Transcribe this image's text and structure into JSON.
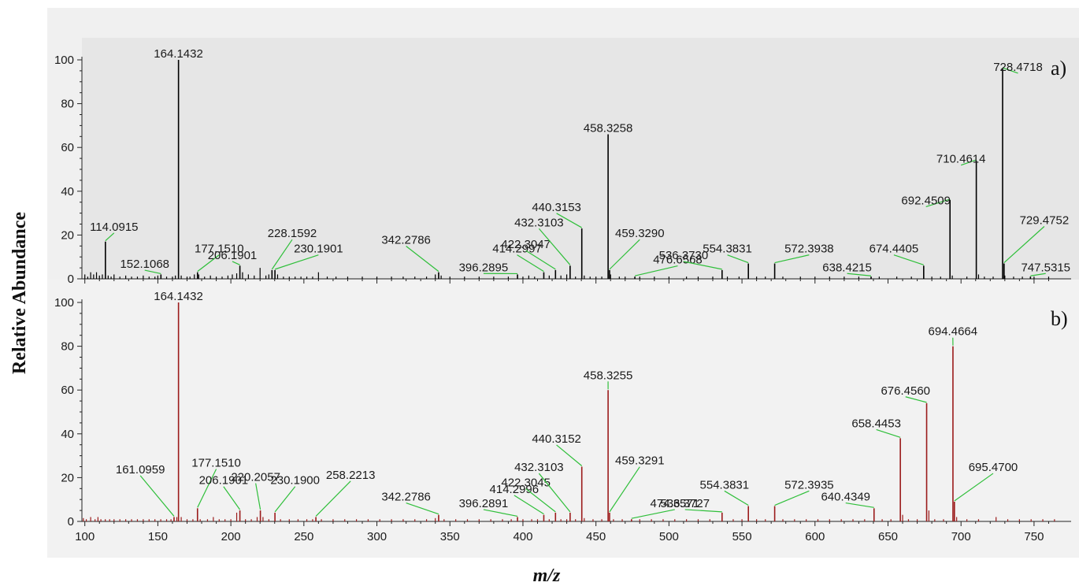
{
  "colors": {
    "panel_a_bg": "#e6e6e6",
    "panel_b_bg": "#f2f2f2",
    "spectrum_a": "#000000",
    "spectrum_b": "#9b1b1b",
    "leader_line": "#2fbf3a"
  },
  "chart_data": [
    {
      "type": "bar",
      "subtype": "mass-spectrum",
      "panel_label": "a)",
      "xlabel": "m/z",
      "ylabel": "Relative Abundance",
      "xlim": [
        98,
        770
      ],
      "ylim": [
        0,
        100
      ],
      "y_ticks": [
        0,
        20,
        40,
        60,
        80,
        100
      ],
      "peaks": [
        {
          "mz": 114.0915,
          "intensity": 17,
          "label": "114.0915",
          "label_mz": 120,
          "label_y": 22
        },
        {
          "mz": 152.1068,
          "intensity": 2,
          "label": "152.1068",
          "label_mz": 141,
          "label_y": 5
        },
        {
          "mz": 164.1432,
          "intensity": 100,
          "label": "164.1432",
          "label_mz": 164.1,
          "label_y": 101
        },
        {
          "mz": 177.151,
          "intensity": 3,
          "label": "177.1510",
          "label_mz": 192,
          "label_y": 12
        },
        {
          "mz": 206.1901,
          "intensity": 6,
          "label": "206.1901",
          "label_mz": 201,
          "label_y": 9
        },
        {
          "mz": 228.1592,
          "intensity": 4,
          "label": "228.1592",
          "label_mz": 242,
          "label_y": 19
        },
        {
          "mz": 230.1901,
          "intensity": 4,
          "label": "230.1901",
          "label_mz": 260,
          "label_y": 12
        },
        {
          "mz": 342.2786,
          "intensity": 3,
          "label": "342.2786",
          "label_mz": 320,
          "label_y": 16
        },
        {
          "mz": 396.2895,
          "intensity": 2,
          "label": "396.2895",
          "label_mz": 373,
          "label_y": 3.5
        },
        {
          "mz": 414.2997,
          "intensity": 3,
          "label": "414.2997",
          "label_mz": 396,
          "label_y": 12
        },
        {
          "mz": 422.3047,
          "intensity": 4,
          "label": "422.3047",
          "label_mz": 402,
          "label_y": 14
        },
        {
          "mz": 432.3103,
          "intensity": 6,
          "label": "432.3103",
          "label_mz": 411,
          "label_y": 24
        },
        {
          "mz": 440.3153,
          "intensity": 23,
          "label": "440.3153",
          "label_mz": 423,
          "label_y": 31
        },
        {
          "mz": 458.3258,
          "intensity": 66,
          "label": "458.3258",
          "label_mz": 458.3,
          "label_y": 67
        },
        {
          "mz": 459.329,
          "intensity": 4,
          "label": "459.3290",
          "label_mz": 480,
          "label_y": 19
        },
        {
          "mz": 476.6568,
          "intensity": 1,
          "label": "476.6568",
          "label_mz": 506,
          "label_y": 7
        },
        {
          "mz": 536.373,
          "intensity": 4,
          "label": "536.3730",
          "label_mz": 510,
          "label_y": 9
        },
        {
          "mz": 554.3831,
          "intensity": 7,
          "label": "554.3831",
          "label_mz": 540,
          "label_y": 12
        },
        {
          "mz": 572.3938,
          "intensity": 7,
          "label": "572.3938",
          "label_mz": 596,
          "label_y": 12
        },
        {
          "mz": 638.4215,
          "intensity": 1,
          "label": "638.4215",
          "label_mz": 622,
          "label_y": 3.5
        },
        {
          "mz": 674.4405,
          "intensity": 6,
          "label": "674.4405",
          "label_mz": 654,
          "label_y": 12
        },
        {
          "mz": 692.4509,
          "intensity": 36,
          "label": "692.4509",
          "label_mz": 676,
          "label_y": 34
        },
        {
          "mz": 710.4614,
          "intensity": 54,
          "label": "710.4614",
          "label_mz": 700,
          "label_y": 53
        },
        {
          "mz": 728.4718,
          "intensity": 96,
          "label": "728.4718",
          "label_mz": 739,
          "label_y": 95
        },
        {
          "mz": 729.4752,
          "intensity": 7,
          "label": "729.4752",
          "label_mz": 757,
          "label_y": 25
        },
        {
          "mz": 747.5315,
          "intensity": 1,
          "label": "747.5315",
          "label_mz": 758,
          "label_y": 3.5
        }
      ],
      "minor_peaks": [
        [
          100,
          2
        ],
        [
          102,
          1
        ],
        [
          104,
          3
        ],
        [
          106,
          2
        ],
        [
          108,
          3
        ],
        [
          110,
          1.5
        ],
        [
          112,
          2
        ],
        [
          116,
          1.5
        ],
        [
          118,
          1
        ],
        [
          120,
          2
        ],
        [
          124,
          1
        ],
        [
          128,
          1.5
        ],
        [
          132,
          1
        ],
        [
          136,
          1
        ],
        [
          140,
          1.5
        ],
        [
          144,
          1
        ],
        [
          148,
          1
        ],
        [
          150,
          1.5
        ],
        [
          156,
          1
        ],
        [
          160,
          1
        ],
        [
          162,
          1.5
        ],
        [
          166,
          1.5
        ],
        [
          170,
          1
        ],
        [
          172,
          1
        ],
        [
          175,
          2
        ],
        [
          178,
          2
        ],
        [
          182,
          1
        ],
        [
          186,
          1.5
        ],
        [
          190,
          1
        ],
        [
          194,
          1
        ],
        [
          198,
          1.5
        ],
        [
          201,
          2
        ],
        [
          204,
          2.5
        ],
        [
          208,
          3
        ],
        [
          212,
          2
        ],
        [
          216,
          1.5
        ],
        [
          220,
          5
        ],
        [
          224,
          1.5
        ],
        [
          226,
          2
        ],
        [
          232,
          2
        ],
        [
          236,
          1
        ],
        [
          240,
          1
        ],
        [
          244,
          1
        ],
        [
          248,
          1
        ],
        [
          252,
          1
        ],
        [
          256,
          1
        ],
        [
          260,
          3
        ],
        [
          266,
          1
        ],
        [
          272,
          1
        ],
        [
          280,
          1
        ],
        [
          290,
          1
        ],
        [
          300,
          1
        ],
        [
          310,
          1
        ],
        [
          318,
          1
        ],
        [
          326,
          1
        ],
        [
          334,
          1
        ],
        [
          340,
          2
        ],
        [
          344,
          1.5
        ],
        [
          350,
          1
        ],
        [
          360,
          1
        ],
        [
          370,
          1
        ],
        [
          380,
          1
        ],
        [
          390,
          1
        ],
        [
          400,
          1
        ],
        [
          404,
          1.5
        ],
        [
          408,
          1
        ],
        [
          418,
          1.5
        ],
        [
          426,
          1.5
        ],
        [
          430,
          2
        ],
        [
          436,
          1
        ],
        [
          442,
          1.5
        ],
        [
          446,
          1
        ],
        [
          450,
          1
        ],
        [
          454,
          1
        ],
        [
          460,
          2
        ],
        [
          466,
          1
        ],
        [
          470,
          1
        ],
        [
          480,
          1
        ],
        [
          490,
          1
        ],
        [
          500,
          1
        ],
        [
          512,
          1
        ],
        [
          520,
          1
        ],
        [
          530,
          1
        ],
        [
          540,
          1
        ],
        [
          548,
          1
        ],
        [
          560,
          1
        ],
        [
          566,
          1
        ],
        [
          578,
          1
        ],
        [
          590,
          1
        ],
        [
          600,
          1
        ],
        [
          610,
          1
        ],
        [
          620,
          1
        ],
        [
          630,
          1
        ],
        [
          644,
          1
        ],
        [
          656,
          1
        ],
        [
          666,
          1
        ],
        [
          680,
          1
        ],
        [
          686,
          1
        ],
        [
          694,
          1.5
        ],
        [
          704,
          1
        ],
        [
          712,
          2
        ],
        [
          716,
          1
        ],
        [
          722,
          1
        ],
        [
          730,
          1.5
        ],
        [
          736,
          1
        ],
        [
          742,
          1
        ],
        [
          750,
          1
        ],
        [
          760,
          1
        ]
      ]
    },
    {
      "type": "bar",
      "subtype": "mass-spectrum",
      "panel_label": "b)",
      "xlabel": "m/z",
      "ylabel": "Relative Abundance",
      "xlim": [
        98,
        770
      ],
      "ylim": [
        0,
        100
      ],
      "y_ticks": [
        0,
        20,
        40,
        60,
        80,
        100
      ],
      "x_ticks": [
        100,
        150,
        200,
        250,
        300,
        350,
        400,
        450,
        500,
        550,
        600,
        650,
        700,
        750
      ],
      "peaks": [
        {
          "mz": 161.0959,
          "intensity": 2,
          "label": "161.0959",
          "label_mz": 138,
          "label_y": 22
        },
        {
          "mz": 164.1432,
          "intensity": 100,
          "label": "164.1432",
          "label_mz": 164.1,
          "label_y": 101
        },
        {
          "mz": 177.151,
          "intensity": 6,
          "label": "177.1510",
          "label_mz": 190,
          "label_y": 25
        },
        {
          "mz": 206.1901,
          "intensity": 5,
          "label": "206.1901",
          "label_mz": 195,
          "label_y": 17
        },
        {
          "mz": 220.2057,
          "intensity": 5,
          "label": "220.2057",
          "label_mz": 217,
          "label_y": 18.5
        },
        {
          "mz": 230.19,
          "intensity": 4,
          "label": "230.1900",
          "label_mz": 244,
          "label_y": 17
        },
        {
          "mz": 258.2213,
          "intensity": 2,
          "label": "258.2213",
          "label_mz": 282,
          "label_y": 19.5
        },
        {
          "mz": 342.2786,
          "intensity": 3,
          "label": "342.2786",
          "label_mz": 320,
          "label_y": 9.5
        },
        {
          "mz": 396.2891,
          "intensity": 2,
          "label": "396.2891",
          "label_mz": 373,
          "label_y": 6.5
        },
        {
          "mz": 414.2996,
          "intensity": 3,
          "label": "414.2996",
          "label_mz": 394,
          "label_y": 13
        },
        {
          "mz": 422.3045,
          "intensity": 4,
          "label": "422.3045",
          "label_mz": 402,
          "label_y": 16
        },
        {
          "mz": 432.3103,
          "intensity": 4,
          "label": "432.3103",
          "label_mz": 411,
          "label_y": 23
        },
        {
          "mz": 440.3152,
          "intensity": 25,
          "label": "440.3152",
          "label_mz": 423,
          "label_y": 36
        },
        {
          "mz": 458.3255,
          "intensity": 60,
          "label": "458.3255",
          "label_mz": 458.3,
          "label_y": 65
        },
        {
          "mz": 459.3291,
          "intensity": 4,
          "label": "459.3291",
          "label_mz": 480,
          "label_y": 26
        },
        {
          "mz": 474.3571,
          "intensity": 1,
          "label": "474.3571",
          "label_mz": 504,
          "label_y": 6.5
        },
        {
          "mz": 536.3727,
          "intensity": 4,
          "label": "536.3727",
          "label_mz": 511,
          "label_y": 6.5
        },
        {
          "mz": 554.3831,
          "intensity": 7,
          "label": "554.3831",
          "label_mz": 538,
          "label_y": 15
        },
        {
          "mz": 572.3935,
          "intensity": 7,
          "label": "572.3935",
          "label_mz": 596,
          "label_y": 15
        },
        {
          "mz": 640.4349,
          "intensity": 6,
          "label": "640.4349",
          "label_mz": 621,
          "label_y": 9.5
        },
        {
          "mz": 658.4453,
          "intensity": 38,
          "label": "658.4453",
          "label_mz": 642,
          "label_y": 43
        },
        {
          "mz": 676.456,
          "intensity": 54,
          "label": "676.4560",
          "label_mz": 662,
          "label_y": 58
        },
        {
          "mz": 694.4664,
          "intensity": 80,
          "label": "694.4664",
          "label_mz": 694.4,
          "label_y": 85
        },
        {
          "mz": 695.47,
          "intensity": 9,
          "label": "695.4700",
          "label_mz": 722,
          "label_y": 23
        }
      ],
      "minor_peaks": [
        [
          99,
          1.5
        ],
        [
          101,
          1
        ],
        [
          104,
          2
        ],
        [
          107,
          1
        ],
        [
          109,
          2
        ],
        [
          111,
          1
        ],
        [
          114,
          1
        ],
        [
          117,
          1
        ],
        [
          120,
          1
        ],
        [
          124,
          1
        ],
        [
          128,
          1
        ],
        [
          132,
          1
        ],
        [
          136,
          1
        ],
        [
          140,
          1
        ],
        [
          144,
          1
        ],
        [
          148,
          1
        ],
        [
          152,
          1
        ],
        [
          156,
          1
        ],
        [
          159,
          1
        ],
        [
          163,
          2
        ],
        [
          166,
          2
        ],
        [
          170,
          1
        ],
        [
          174,
          1
        ],
        [
          179,
          1
        ],
        [
          184,
          1
        ],
        [
          188,
          2
        ],
        [
          192,
          1
        ],
        [
          196,
          1
        ],
        [
          200,
          1
        ],
        [
          204,
          4
        ],
        [
          210,
          1
        ],
        [
          214,
          1
        ],
        [
          218,
          2
        ],
        [
          222,
          2
        ],
        [
          226,
          1
        ],
        [
          234,
          1
        ],
        [
          240,
          1
        ],
        [
          246,
          1
        ],
        [
          252,
          1
        ],
        [
          256,
          1
        ],
        [
          262,
          1
        ],
        [
          270,
          1
        ],
        [
          278,
          1
        ],
        [
          286,
          1
        ],
        [
          294,
          1
        ],
        [
          302,
          1
        ],
        [
          310,
          1
        ],
        [
          318,
          1
        ],
        [
          326,
          1
        ],
        [
          334,
          1
        ],
        [
          340,
          1.5
        ],
        [
          346,
          1
        ],
        [
          354,
          1
        ],
        [
          362,
          1
        ],
        [
          370,
          1
        ],
        [
          378,
          1
        ],
        [
          386,
          1
        ],
        [
          392,
          1
        ],
        [
          400,
          1
        ],
        [
          406,
          1
        ],
        [
          410,
          1
        ],
        [
          418,
          1
        ],
        [
          426,
          1
        ],
        [
          430,
          1
        ],
        [
          436,
          1
        ],
        [
          442,
          1.5
        ],
        [
          448,
          1
        ],
        [
          454,
          1
        ],
        [
          462,
          1
        ],
        [
          468,
          1
        ],
        [
          480,
          1
        ],
        [
          488,
          1
        ],
        [
          496,
          1
        ],
        [
          504,
          1
        ],
        [
          512,
          1
        ],
        [
          520,
          1
        ],
        [
          528,
          1
        ],
        [
          544,
          1
        ],
        [
          550,
          1
        ],
        [
          560,
          1
        ],
        [
          566,
          1
        ],
        [
          578,
          1
        ],
        [
          586,
          1
        ],
        [
          594,
          1
        ],
        [
          602,
          1
        ],
        [
          610,
          1
        ],
        [
          618,
          1
        ],
        [
          626,
          1
        ],
        [
          634,
          1
        ],
        [
          646,
          1
        ],
        [
          652,
          1
        ],
        [
          660,
          3
        ],
        [
          664,
          1
        ],
        [
          670,
          1
        ],
        [
          678,
          5
        ],
        [
          682,
          1
        ],
        [
          688,
          1
        ],
        [
          697,
          2
        ],
        [
          704,
          1
        ],
        [
          712,
          1
        ],
        [
          724,
          2
        ],
        [
          732,
          1
        ],
        [
          740,
          1
        ],
        [
          748,
          1
        ],
        [
          756,
          1
        ],
        [
          764,
          1
        ]
      ]
    }
  ]
}
